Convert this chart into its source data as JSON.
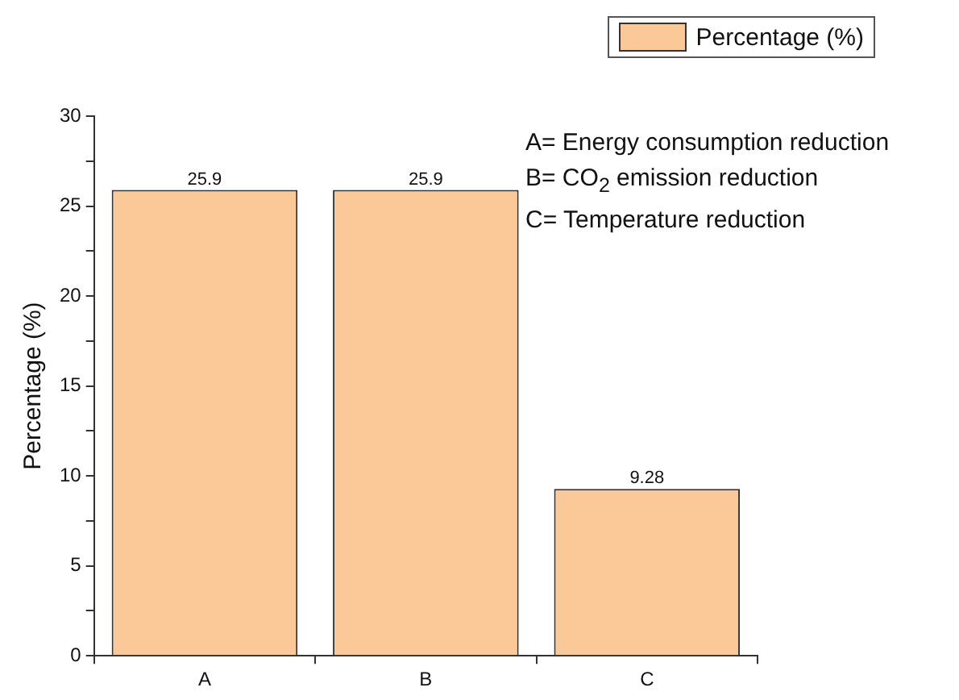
{
  "chart_data": {
    "type": "bar",
    "ylabel": "Percentage (%)",
    "categories": [
      "A",
      "B",
      "C"
    ],
    "series": [
      {
        "name": "Percentage (%)",
        "color": "#fbc898",
        "values": [
          25.9,
          25.9,
          9.28
        ]
      }
    ],
    "ylim": [
      0,
      30
    ],
    "yticks": [
      0,
      {
        "value": 2.5,
        "label": null
      },
      5,
      {
        "value": 7.5,
        "label": null
      },
      10,
      {
        "value": 12.5,
        "label": null
      },
      15,
      {
        "value": 17.5,
        "label": null
      },
      20,
      {
        "value": 22.5,
        "label": null
      },
      25,
      {
        "value": 27.5,
        "label": null
      },
      30
    ],
    "grid": false,
    "legend": "top right",
    "data_labels": true,
    "annotations": [
      "A= Energy consumption reduction",
      "B= CO$_{2}$ emission reduction",
      "C= Temperature reduction"
    ]
  }
}
